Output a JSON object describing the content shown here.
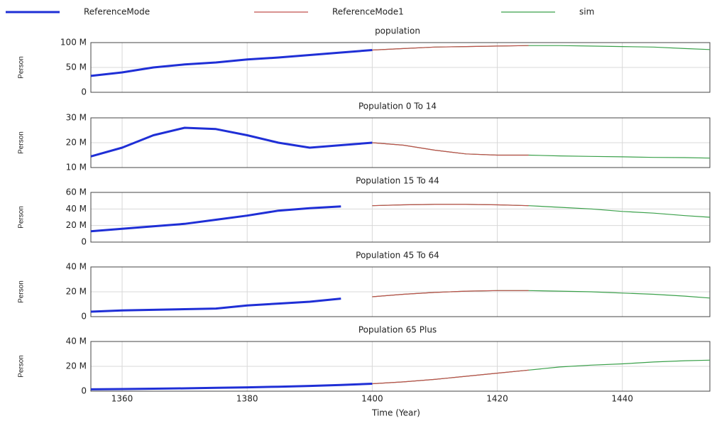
{
  "chart_data": [
    {
      "type": "line",
      "title": "population",
      "y_label": "Person",
      "x": [
        1355,
        1360,
        1365,
        1370,
        1375,
        1380,
        1385,
        1390,
        1395,
        1400,
        1405,
        1410,
        1415,
        1420,
        1425,
        1430,
        1435,
        1440,
        1445,
        1450,
        1454
      ],
      "xlim": [
        1355,
        1454
      ],
      "xticks": [
        1360,
        1380,
        1400,
        1420,
        1440
      ],
      "ylim": [
        0,
        100000000
      ],
      "yticks": [
        {
          "value": 0,
          "label": "0"
        },
        {
          "value": 50000000,
          "label": "50 M"
        },
        {
          "value": 100000000,
          "label": "100 M"
        }
      ],
      "grid": true,
      "series": [
        {
          "name": "ReferenceMode",
          "color": "#1f2fd6",
          "values": [
            33000000,
            40000000,
            50000000,
            56000000,
            60000000,
            66000000,
            70000000,
            75000000,
            80000000,
            85000000,
            null,
            null,
            null,
            null,
            null,
            null,
            null,
            null,
            null,
            null,
            null
          ]
        },
        {
          "name": "sim",
          "color": "#3aa04a",
          "values": [
            null,
            null,
            null,
            null,
            null,
            null,
            null,
            null,
            null,
            85000000,
            88000000,
            91000000,
            92000000,
            93000000,
            94000000,
            94000000,
            93000000,
            92000000,
            91000000,
            88000000,
            86000000
          ]
        },
        {
          "name": "ReferenceMode1",
          "color": "#c0504d",
          "values": [
            null,
            null,
            null,
            null,
            null,
            null,
            null,
            null,
            null,
            85000000,
            88000000,
            91000000,
            92000000,
            93000000,
            94000000,
            null,
            null,
            null,
            null,
            null,
            null
          ]
        }
      ]
    },
    {
      "type": "line",
      "title": "Population 0 To 14",
      "y_label": "Person",
      "x": [
        1355,
        1360,
        1365,
        1370,
        1375,
        1380,
        1385,
        1390,
        1395,
        1400,
        1405,
        1410,
        1415,
        1420,
        1425,
        1430,
        1435,
        1440,
        1445,
        1450,
        1454
      ],
      "xlim": [
        1355,
        1454
      ],
      "xticks": [
        1360,
        1380,
        1400,
        1420,
        1440
      ],
      "ylim": [
        10000000,
        30000000
      ],
      "yticks": [
        {
          "value": 10000000,
          "label": "10 M"
        },
        {
          "value": 20000000,
          "label": "20 M"
        },
        {
          "value": 30000000,
          "label": "30 M"
        }
      ],
      "grid": true,
      "series": [
        {
          "color": "#1f2fd6",
          "values": [
            14500000,
            18000000,
            23000000,
            26000000,
            25500000,
            23000000,
            20000000,
            18000000,
            19000000,
            20000000,
            null,
            null,
            null,
            null,
            null,
            null,
            null,
            null,
            null,
            null,
            null
          ]
        },
        {
          "color": "#3aa04a",
          "values": [
            null,
            null,
            null,
            null,
            null,
            null,
            null,
            null,
            null,
            20000000,
            19000000,
            17000000,
            15500000,
            15000000,
            15000000,
            14700000,
            14500000,
            14300000,
            14100000,
            14000000,
            13800000
          ]
        },
        {
          "color": "#c0504d",
          "values": [
            null,
            null,
            null,
            null,
            null,
            null,
            null,
            null,
            null,
            20000000,
            19000000,
            17000000,
            15500000,
            15000000,
            15000000,
            null,
            null,
            null,
            null,
            null,
            null
          ]
        }
      ]
    },
    {
      "type": "line",
      "title": "Population 15 To 44",
      "y_label": "Person",
      "x": [
        1355,
        1360,
        1365,
        1370,
        1375,
        1380,
        1385,
        1390,
        1395,
        1400,
        1405,
        1410,
        1415,
        1420,
        1425,
        1430,
        1435,
        1440,
        1445,
        1450,
        1454
      ],
      "xlim": [
        1355,
        1454
      ],
      "xticks": [
        1360,
        1380,
        1400,
        1420,
        1440
      ],
      "ylim": [
        0,
        60000000
      ],
      "yticks": [
        {
          "value": 0,
          "label": "0"
        },
        {
          "value": 20000000,
          "label": "20 M"
        },
        {
          "value": 40000000,
          "label": "40 M"
        },
        {
          "value": 60000000,
          "label": "60 M"
        }
      ],
      "grid": true,
      "series": [
        {
          "color": "#1f2fd6",
          "values": [
            13000000,
            16000000,
            19000000,
            22000000,
            27000000,
            32000000,
            38000000,
            41000000,
            43000000,
            null,
            null,
            null,
            null,
            null,
            null,
            null,
            null,
            null,
            null,
            null,
            null
          ]
        },
        {
          "color": "#3aa04a",
          "values": [
            null,
            null,
            null,
            null,
            null,
            null,
            null,
            null,
            null,
            44000000,
            45000000,
            45500000,
            45500000,
            45000000,
            44000000,
            42000000,
            40000000,
            37000000,
            35000000,
            32000000,
            30000000
          ]
        },
        {
          "color": "#c0504d",
          "values": [
            null,
            null,
            null,
            null,
            null,
            null,
            null,
            null,
            null,
            44000000,
            45000000,
            45500000,
            45500000,
            45000000,
            44000000,
            null,
            null,
            null,
            null,
            null,
            null
          ]
        }
      ]
    },
    {
      "type": "line",
      "title": "Population 45 To 64",
      "y_label": "Person",
      "x": [
        1355,
        1360,
        1365,
        1370,
        1375,
        1380,
        1385,
        1390,
        1395,
        1400,
        1405,
        1410,
        1415,
        1420,
        1425,
        1430,
        1435,
        1440,
        1445,
        1450,
        1454
      ],
      "xlim": [
        1355,
        1454
      ],
      "xticks": [
        1360,
        1380,
        1400,
        1420,
        1440
      ],
      "ylim": [
        0,
        40000000
      ],
      "yticks": [
        {
          "value": 0,
          "label": "0"
        },
        {
          "value": 20000000,
          "label": "20 M"
        },
        {
          "value": 40000000,
          "label": "40 M"
        }
      ],
      "grid": true,
      "series": [
        {
          "color": "#1f2fd6",
          "values": [
            4000000,
            5000000,
            5500000,
            6000000,
            6500000,
            9000000,
            10500000,
            12000000,
            14500000,
            null,
            null,
            null,
            null,
            null,
            null,
            null,
            null,
            null,
            null,
            null,
            null
          ]
        },
        {
          "color": "#3aa04a",
          "values": [
            null,
            null,
            null,
            null,
            null,
            null,
            null,
            null,
            null,
            16000000,
            18000000,
            19500000,
            20500000,
            21000000,
            21000000,
            20500000,
            20000000,
            19000000,
            18000000,
            16500000,
            15000000
          ]
        },
        {
          "color": "#c0504d",
          "values": [
            null,
            null,
            null,
            null,
            null,
            null,
            null,
            null,
            null,
            16000000,
            18000000,
            19500000,
            20500000,
            21000000,
            21000000,
            null,
            null,
            null,
            null,
            null,
            null
          ]
        }
      ]
    },
    {
      "type": "line",
      "title": "Population 65 Plus",
      "y_label": "Person",
      "x_label": "Time (Year)",
      "x": [
        1355,
        1360,
        1365,
        1370,
        1375,
        1380,
        1385,
        1390,
        1395,
        1400,
        1405,
        1410,
        1415,
        1420,
        1425,
        1430,
        1435,
        1440,
        1445,
        1450,
        1454
      ],
      "xlim": [
        1355,
        1454
      ],
      "xticks": [
        1360,
        1380,
        1400,
        1420,
        1440
      ],
      "ylim": [
        0,
        40000000
      ],
      "yticks": [
        {
          "value": 0,
          "label": "0"
        },
        {
          "value": 20000000,
          "label": "20 M"
        },
        {
          "value": 40000000,
          "label": "40 M"
        }
      ],
      "grid": true,
      "series": [
        {
          "color": "#1f2fd6",
          "values": [
            1500000,
            1700000,
            2000000,
            2300000,
            2700000,
            3100000,
            3600000,
            4200000,
            5000000,
            6000000,
            null,
            null,
            null,
            null,
            null,
            null,
            null,
            null,
            null,
            null,
            null
          ]
        },
        {
          "color": "#3aa04a",
          "values": [
            null,
            null,
            null,
            null,
            null,
            null,
            null,
            null,
            null,
            6000000,
            7500000,
            9500000,
            12000000,
            14500000,
            17000000,
            19500000,
            21000000,
            22000000,
            23500000,
            24500000,
            25000000
          ]
        },
        {
          "color": "#c0504d",
          "values": [
            null,
            null,
            null,
            null,
            null,
            null,
            null,
            null,
            null,
            6000000,
            7500000,
            9500000,
            12000000,
            14500000,
            17000000,
            null,
            null,
            null,
            null,
            null,
            null
          ]
        }
      ]
    }
  ]
}
